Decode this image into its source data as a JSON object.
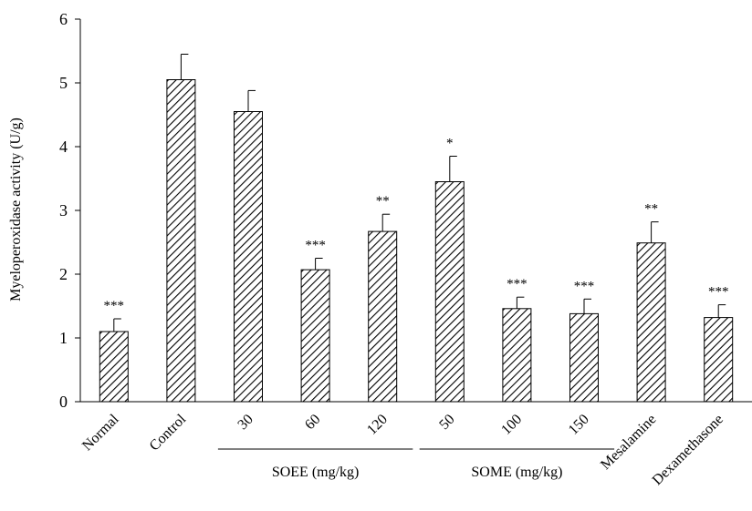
{
  "chart_data": {
    "type": "bar",
    "ylabel": "Myeloperoxidase activity (U/g)",
    "ylim": [
      0,
      6
    ],
    "yticks": [
      "0",
      "1",
      "2",
      "3",
      "4",
      "5",
      "6"
    ],
    "categories": [
      "Normal",
      "Control",
      "30",
      "60",
      "120",
      "50",
      "100",
      "150",
      "Mesalamine",
      "Dexamethasone"
    ],
    "values": [
      1.1,
      5.05,
      4.55,
      2.07,
      2.67,
      3.45,
      1.46,
      1.38,
      2.49,
      1.32
    ],
    "error": [
      0.2,
      0.4,
      0.33,
      0.18,
      0.27,
      0.4,
      0.18,
      0.23,
      0.33,
      0.2
    ],
    "significance": [
      "***",
      "",
      "",
      "***",
      "**",
      "*",
      "***",
      "***",
      "**",
      "***"
    ],
    "groups": [
      {
        "label": "SOEE (mg/kg)",
        "start": 2,
        "end": 4
      },
      {
        "label": "SOME (mg/kg)",
        "start": 5,
        "end": 7
      }
    ],
    "bar_fill": "hatched",
    "bar_color": "#000000",
    "grid": false
  }
}
